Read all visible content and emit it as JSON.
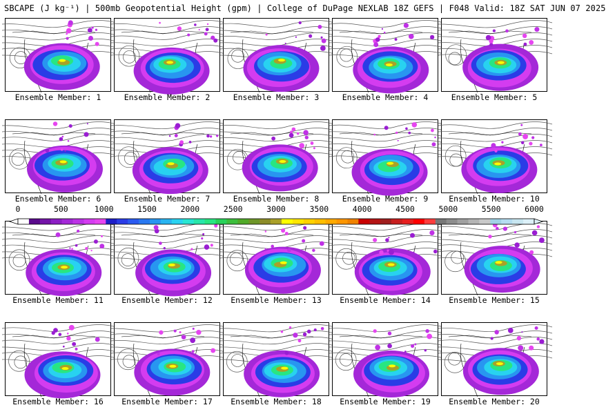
{
  "title": "SBCAPE (J kg⁻¹) | 500mb Geopotential Height (gpm) | College of DuPage NEXLAB 18Z GEFS | F048 Valid: 18Z SAT JUN 07 2025",
  "label_prefix": "Ensemble Member: ",
  "members": [
    1,
    2,
    3,
    4,
    5,
    6,
    7,
    8,
    9,
    10,
    11,
    12,
    13,
    14,
    15,
    16,
    17,
    18,
    19,
    20
  ],
  "colorbar": {
    "min": 0,
    "max": 6000,
    "tick_labels": [
      "0",
      "500",
      "1000",
      "1500",
      "2000",
      "2500",
      "3000",
      "3500",
      "4000",
      "4500",
      "5000",
      "5500",
      "6000"
    ],
    "colors": [
      "#ffffff",
      "#5a0a8c",
      "#7414a8",
      "#8c1ec4",
      "#a428d8",
      "#bc32e6",
      "#d43cf0",
      "#e646f0",
      "#1e1ec8",
      "#2a3ce6",
      "#2a5af0",
      "#2878f0",
      "#2896f0",
      "#28b4f0",
      "#28d2f0",
      "#28e6d2",
      "#28e6aa",
      "#28e682",
      "#28d25a",
      "#3cbe3c",
      "#50aa28",
      "#6e9628",
      "#8c8c28",
      "#aaa028",
      "#ffff00",
      "#ffe600",
      "#ffd200",
      "#ffbe00",
      "#ffaa00",
      "#ff9600",
      "#f08200",
      "#c80000",
      "#b41414",
      "#a01e1e",
      "#c81e1e",
      "#e61e1e",
      "#ff0000",
      "#ff3c3c",
      "#787878",
      "#8c8c8c",
      "#a0a0a0",
      "#b4b4b4",
      "#c8c8c8",
      "#a0d2e6",
      "#b4dcf0",
      "#c8e6f0",
      "#dcf0f8"
    ]
  }
}
